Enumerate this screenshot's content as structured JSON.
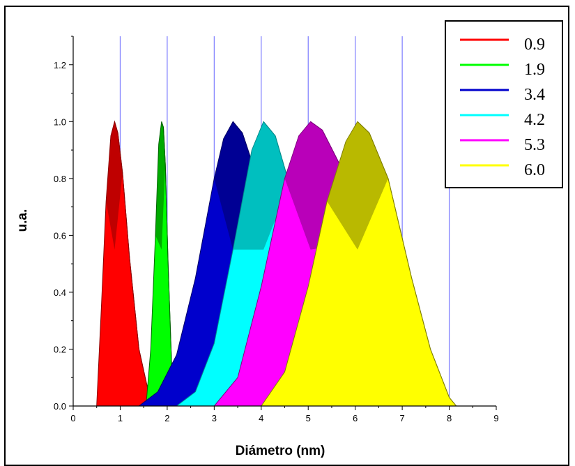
{
  "chart_data": {
    "type": "area",
    "xlabel": "Diámetro (nm)",
    "ylabel": "u.a.",
    "xlim": [
      0,
      9
    ],
    "ylim": [
      0,
      1.3
    ],
    "x_ticks": [
      "0",
      "1",
      "2",
      "3",
      "4",
      "5",
      "6",
      "7",
      "8",
      "9"
    ],
    "y_ticks": [
      "0.0",
      "0.2",
      "0.4",
      "0.6",
      "0.8",
      "1.0",
      "1.2"
    ],
    "vertical_gridlines_at": [
      1,
      2,
      3,
      4,
      5,
      6,
      7,
      8
    ],
    "legend_position": "top-right",
    "series": [
      {
        "name": "0.9",
        "color": "#ff0000",
        "shade": "#8b0000",
        "x": [
          0.5,
          0.6,
          0.7,
          0.8,
          0.88,
          0.95,
          1.05,
          1.2,
          1.4,
          1.6,
          1.8
        ],
        "y": [
          0.0,
          0.35,
          0.72,
          0.95,
          1.0,
          0.96,
          0.82,
          0.52,
          0.2,
          0.05,
          0.0
        ]
      },
      {
        "name": "1.9",
        "color": "#00ff00",
        "shade": "#006400",
        "x": [
          1.55,
          1.65,
          1.75,
          1.82,
          1.88,
          1.92,
          1.96,
          2.02,
          2.1,
          2.2
        ],
        "y": [
          0.0,
          0.2,
          0.6,
          0.92,
          1.0,
          0.98,
          0.85,
          0.5,
          0.12,
          0.0
        ]
      },
      {
        "name": "3.4",
        "color": "#0000cc",
        "shade": "#000066",
        "x": [
          1.4,
          1.8,
          2.2,
          2.6,
          3.0,
          3.2,
          3.4,
          3.6,
          3.8,
          4.2,
          4.6,
          5.0,
          5.15
        ],
        "y": [
          0.0,
          0.05,
          0.18,
          0.45,
          0.8,
          0.94,
          1.0,
          0.96,
          0.86,
          0.55,
          0.25,
          0.06,
          0.0
        ]
      },
      {
        "name": "4.2",
        "color": "#00ffff",
        "shade": "#008b8b",
        "x": [
          2.2,
          2.6,
          3.0,
          3.4,
          3.8,
          4.05,
          4.3,
          4.6,
          5.0,
          5.4,
          5.75
        ],
        "y": [
          0.0,
          0.05,
          0.22,
          0.55,
          0.9,
          1.0,
          0.95,
          0.78,
          0.42,
          0.12,
          0.0
        ]
      },
      {
        "name": "5.3",
        "color": "#ff00ff",
        "shade": "#800080",
        "x": [
          3.0,
          3.5,
          4.0,
          4.5,
          4.8,
          5.05,
          5.3,
          5.7,
          6.2,
          6.8,
          7.4,
          7.9
        ],
        "y": [
          0.0,
          0.1,
          0.42,
          0.8,
          0.95,
          1.0,
          0.97,
          0.84,
          0.58,
          0.26,
          0.06,
          0.0
        ]
      },
      {
        "name": "6.0",
        "color": "#ffff00",
        "shade": "#808000",
        "x": [
          4.0,
          4.5,
          5.0,
          5.4,
          5.8,
          6.05,
          6.3,
          6.7,
          7.2,
          7.6,
          8.0,
          8.15
        ],
        "y": [
          0.0,
          0.12,
          0.42,
          0.72,
          0.93,
          1.0,
          0.96,
          0.8,
          0.45,
          0.2,
          0.03,
          0.0
        ]
      }
    ]
  }
}
